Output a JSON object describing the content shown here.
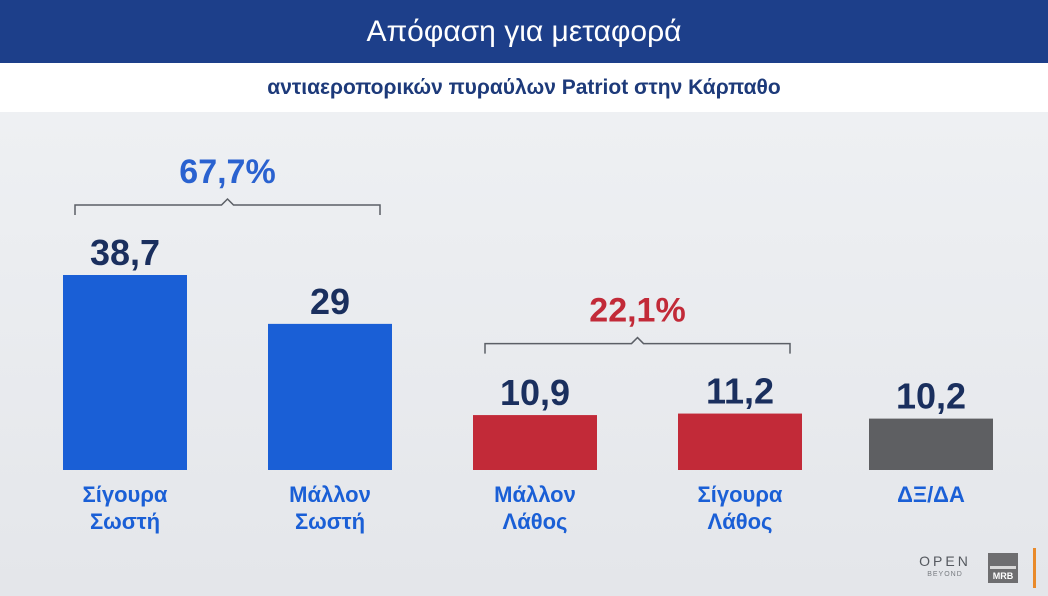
{
  "header": {
    "title": "Απόφαση για μεταφορά",
    "subtitle": "αντιαεροπορικών πυραύλων Patriot στην Κάρπαθο"
  },
  "chart_data": {
    "type": "bar",
    "title": "Απόφαση για μεταφορά",
    "subtitle": "αντιαεροπορικών πυραύλων Patriot στην Κάρπαθο",
    "categories": [
      [
        "Σίγουρα",
        "Σωστή"
      ],
      [
        "Μάλλον",
        "Σωστή"
      ],
      [
        "Μάλλον",
        "Λάθος"
      ],
      [
        "Σίγουρα",
        "Λάθος"
      ],
      [
        "ΔΞ/ΔΑ"
      ]
    ],
    "values": [
      38.7,
      29,
      10.9,
      11.2,
      10.2
    ],
    "value_labels": [
      "38,7",
      "29",
      "10,9",
      "11,2",
      "10,2"
    ],
    "bar_colors": [
      "#1a5fd6",
      "#1a5fd6",
      "#c22a38",
      "#c22a38",
      "#5e5f62"
    ],
    "value_label_color": "#1a2f5e",
    "category_label_color": "#1a5fd6",
    "groups": [
      {
        "label": "67,7%",
        "bars": [
          0,
          1
        ],
        "color": "#2a62d0"
      },
      {
        "label": "22,1%",
        "bars": [
          2,
          3
        ],
        "color": "#c22a38"
      }
    ],
    "xlabel": "",
    "ylabel": "",
    "ylim": [
      0,
      40
    ],
    "grid": false,
    "legend": "none"
  },
  "logos": {
    "open": "OPEN",
    "open_sub": "BEYOND",
    "mrb": "MRB"
  }
}
